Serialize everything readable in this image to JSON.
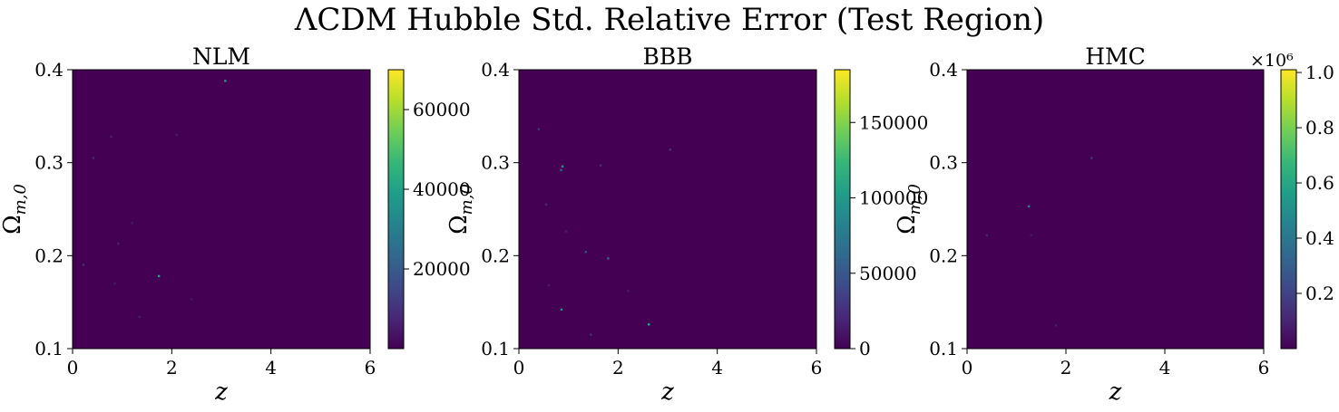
{
  "figure": {
    "title": "ΛCDM Hubble Std. Relative Error (Test Region)"
  },
  "chart_data": [
    {
      "type": "heatmap",
      "title": "NLM",
      "xlabel": "z",
      "ylabel": "Ω_{m,0}",
      "xlim": [
        0,
        6
      ],
      "ylim": [
        0.1,
        0.4
      ],
      "x_ticks": [
        "0",
        "2",
        "4",
        "6"
      ],
      "y_ticks": [
        "0.1",
        "0.2",
        "0.3",
        "0.4"
      ],
      "background_value": 0,
      "colorbar": {
        "min": 0,
        "max": 70000,
        "ticks": [
          20000,
          40000,
          60000
        ],
        "tick_labels": [
          "20000",
          "40000",
          "60000"
        ],
        "offset_label": ""
      },
      "hotspots": [
        {
          "x": 1.74,
          "y": 0.178,
          "v": 40000
        },
        {
          "x": 3.08,
          "y": 0.388,
          "v": 38000
        },
        {
          "x": 0.22,
          "y": 0.19,
          "v": 9000
        },
        {
          "x": 0.42,
          "y": 0.305,
          "v": 8000
        },
        {
          "x": 0.78,
          "y": 0.328,
          "v": 6000
        },
        {
          "x": 0.92,
          "y": 0.213,
          "v": 7000
        },
        {
          "x": 2.1,
          "y": 0.33,
          "v": 5000
        },
        {
          "x": 1.35,
          "y": 0.134,
          "v": 6000
        },
        {
          "x": 2.4,
          "y": 0.153,
          "v": 4000
        },
        {
          "x": 1.2,
          "y": 0.235,
          "v": 4000
        },
        {
          "x": 0.85,
          "y": 0.17,
          "v": 5000
        }
      ]
    },
    {
      "type": "heatmap",
      "title": "BBB",
      "xlabel": "z",
      "ylabel": "Ω_{m,0}",
      "xlim": [
        0,
        6
      ],
      "ylim": [
        0.1,
        0.4
      ],
      "x_ticks": [
        "0",
        "2",
        "4",
        "6"
      ],
      "y_ticks": [
        "0.1",
        "0.2",
        "0.3",
        "0.4"
      ],
      "background_value": 0,
      "colorbar": {
        "min": 0,
        "max": 185000,
        "ticks": [
          0,
          50000,
          100000,
          150000
        ],
        "tick_labels": [
          "0",
          "50000",
          "100000",
          "150000"
        ],
        "offset_label": ""
      },
      "hotspots": [
        {
          "x": 0.88,
          "y": 0.296,
          "v": 100000
        },
        {
          "x": 0.85,
          "y": 0.292,
          "v": 60000
        },
        {
          "x": 0.86,
          "y": 0.142,
          "v": 90000
        },
        {
          "x": 2.62,
          "y": 0.126,
          "v": 110000
        },
        {
          "x": 1.8,
          "y": 0.197,
          "v": 60000
        },
        {
          "x": 1.35,
          "y": 0.204,
          "v": 40000
        },
        {
          "x": 3.05,
          "y": 0.314,
          "v": 30000
        },
        {
          "x": 0.4,
          "y": 0.336,
          "v": 25000
        },
        {
          "x": 0.55,
          "y": 0.255,
          "v": 20000
        },
        {
          "x": 1.45,
          "y": 0.115,
          "v": 25000
        },
        {
          "x": 0.95,
          "y": 0.226,
          "v": 15000
        },
        {
          "x": 1.65,
          "y": 0.297,
          "v": 20000
        },
        {
          "x": 0.6,
          "y": 0.168,
          "v": 15000
        },
        {
          "x": 2.2,
          "y": 0.162,
          "v": 15000
        }
      ]
    },
    {
      "type": "heatmap",
      "title": "HMC",
      "xlabel": "z",
      "ylabel": "Ω_{m,0}",
      "xlim": [
        0,
        6
      ],
      "ylim": [
        0.1,
        0.4
      ],
      "x_ticks": [
        "0",
        "2",
        "4",
        "6"
      ],
      "y_ticks": [
        "0.1",
        "0.2",
        "0.3",
        "0.4"
      ],
      "background_value": 0,
      "colorbar": {
        "min": 0,
        "max": 1.01,
        "ticks": [
          0.2,
          0.4,
          0.6,
          0.8,
          1.0
        ],
        "tick_labels": [
          "0.2",
          "0.4",
          "0.6",
          "0.8",
          "1.0"
        ],
        "offset_label": "×10⁶"
      },
      "hotspots": [
        {
          "x": 1.25,
          "y": 0.253,
          "v": 0.45
        },
        {
          "x": 2.52,
          "y": 0.305,
          "v": 0.15
        },
        {
          "x": 0.4,
          "y": 0.222,
          "v": 0.1
        },
        {
          "x": 1.8,
          "y": 0.125,
          "v": 0.08
        },
        {
          "x": 1.3,
          "y": 0.222,
          "v": 0.06
        }
      ]
    }
  ]
}
